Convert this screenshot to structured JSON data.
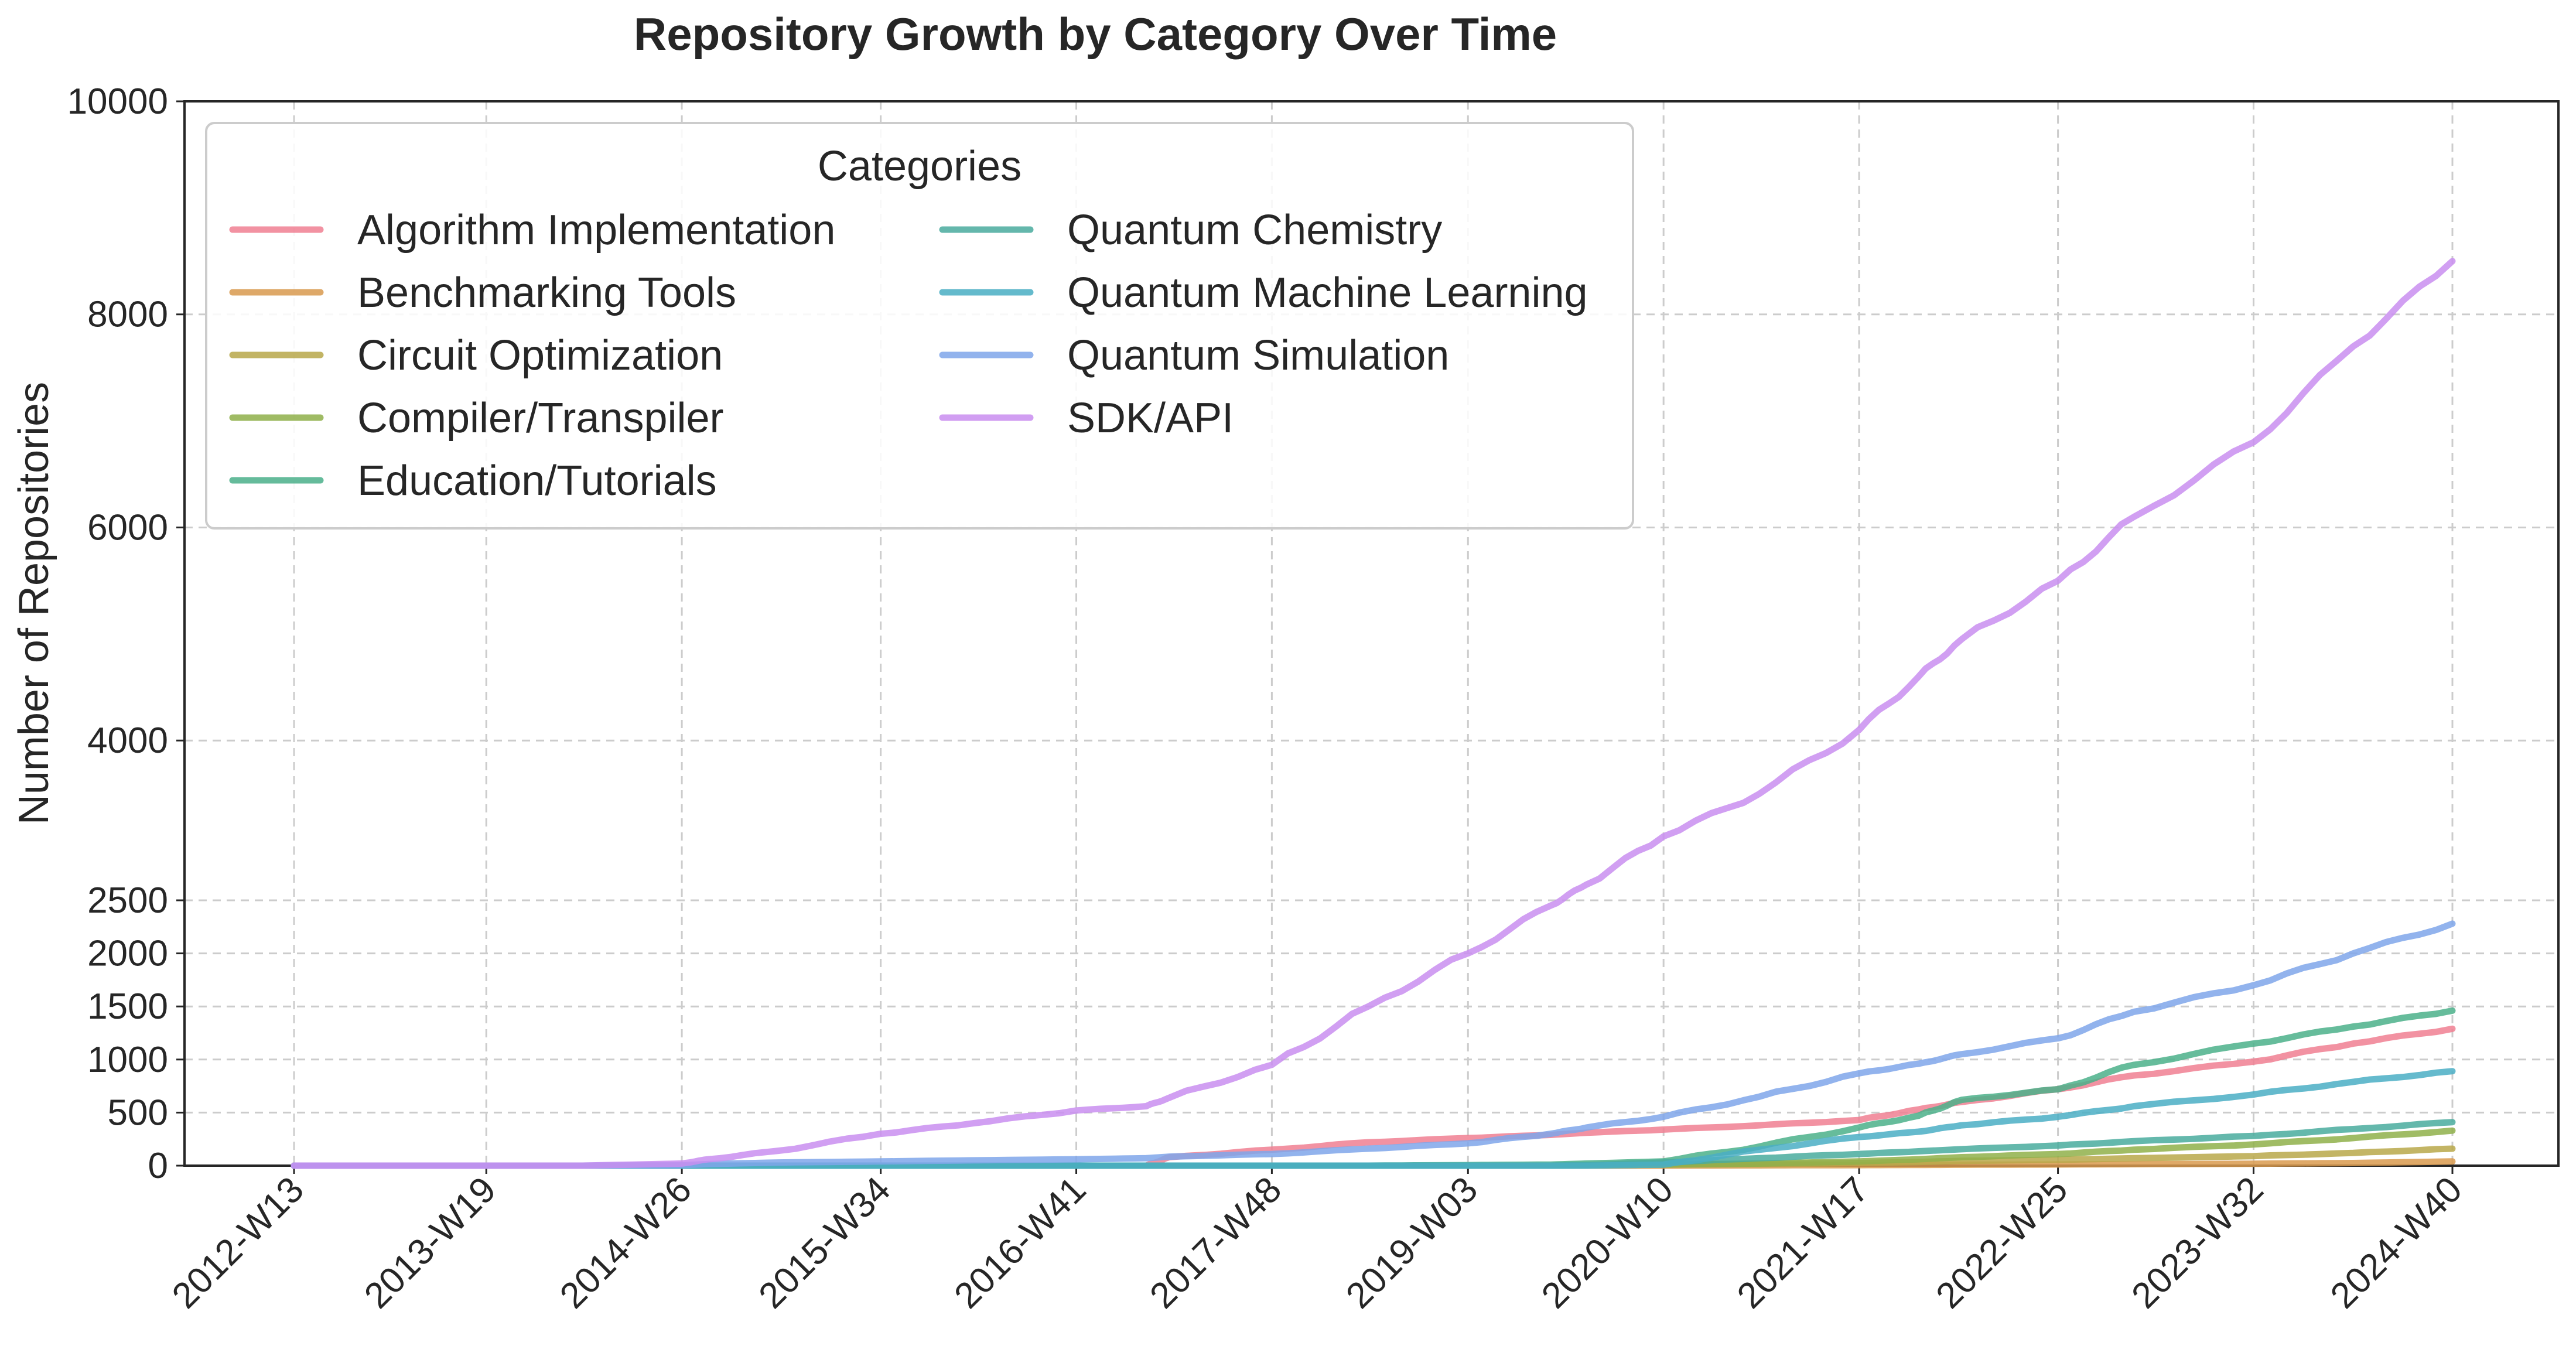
{
  "chart_data": {
    "type": "line",
    "title": "Repository Growth by Category Over Time",
    "xlabel": "",
    "ylabel": "Number of Repositories",
    "ylim": [
      0,
      10000
    ],
    "y_scale": "piecewise-linear (0–2500 stretched, 2500–10000 compressed)",
    "y_ticks": [
      0,
      500,
      1000,
      1500,
      2000,
      2500,
      4000,
      6000,
      8000,
      10000
    ],
    "x_tick_labels": [
      "2012-W13",
      "2013-W19",
      "2014-W26",
      "2015-W34",
      "2016-W41",
      "2017-W48",
      "2019-W03",
      "2020-W10",
      "2021-W17",
      "2022-W25",
      "2023-W32",
      "2024-W40"
    ],
    "x": [
      "2012-W13",
      "2012-W41",
      "2013-W19",
      "2013-W48",
      "2014-W26",
      "2014-W34",
      "2015-W03",
      "2015-W34",
      "2016-W10",
      "2016-W41",
      "2017-W10",
      "2017-W17",
      "2017-W48",
      "2018-W25",
      "2019-W03",
      "2019-W28",
      "2019-W39",
      "2020-W10",
      "2020-W39",
      "2021-W17",
      "2021-W35",
      "2021-W48",
      "2022-W25",
      "2022-W48",
      "2023-W32",
      "2024-W10",
      "2024-W40"
    ],
    "grid": true,
    "legend": {
      "title": "Categories",
      "placement": "upper-left",
      "columns": 2
    },
    "series": [
      {
        "name": "Algorithm Implementation",
        "color": "#f07f92",
        "values": [
          0,
          0,
          0,
          0,
          0,
          0,
          0,
          0,
          0,
          0,
          0,
          80,
          150,
          220,
          260,
          290,
          310,
          340,
          380,
          430,
          530,
          600,
          720,
          850,
          980,
          1150,
          1290
        ]
      },
      {
        "name": "Benchmarking Tools",
        "color": "#d99a4e",
        "values": [
          0,
          0,
          0,
          0,
          0,
          0,
          0,
          0,
          0,
          0,
          0,
          0,
          0,
          0,
          0,
          0,
          0,
          0,
          3,
          5,
          7,
          9,
          11,
          14,
          18,
          25,
          40
        ]
      },
      {
        "name": "Circuit Optimization",
        "color": "#b8a84a",
        "values": [
          0,
          0,
          0,
          0,
          0,
          0,
          0,
          0,
          0,
          0,
          0,
          0,
          0,
          0,
          0,
          0,
          5,
          10,
          15,
          25,
          35,
          45,
          55,
          70,
          90,
          120,
          160
        ]
      },
      {
        "name": "Compiler/Transpiler",
        "color": "#8fb04a",
        "values": [
          0,
          0,
          0,
          0,
          0,
          0,
          0,
          0,
          0,
          0,
          0,
          0,
          0,
          0,
          0,
          0,
          5,
          10,
          20,
          40,
          60,
          80,
          110,
          150,
          200,
          260,
          330
        ]
      },
      {
        "name": "Education/Tutorials",
        "color": "#4bb08a",
        "values": [
          0,
          0,
          0,
          0,
          0,
          0,
          0,
          0,
          0,
          0,
          0,
          0,
          0,
          0,
          5,
          10,
          20,
          40,
          180,
          360,
          470,
          620,
          720,
          950,
          1150,
          1310,
          1460
        ]
      },
      {
        "name": "Quantum Chemistry",
        "color": "#49ab9e",
        "values": [
          0,
          0,
          0,
          0,
          0,
          0,
          0,
          0,
          0,
          0,
          0,
          0,
          0,
          0,
          0,
          0,
          5,
          30,
          70,
          110,
          135,
          155,
          190,
          230,
          280,
          345,
          410
        ]
      },
      {
        "name": "Quantum Machine Learning",
        "color": "#4aaec4",
        "values": [
          0,
          0,
          0,
          0,
          0,
          0,
          0,
          0,
          0,
          0,
          0,
          0,
          0,
          0,
          0,
          0,
          0,
          10,
          150,
          270,
          320,
          380,
          460,
          560,
          670,
          790,
          890
        ]
      },
      {
        "name": "Quantum Simulation",
        "color": "#7fa6ea",
        "values": [
          0,
          0,
          0,
          0,
          5,
          15,
          30,
          40,
          50,
          60,
          70,
          85,
          110,
          160,
          210,
          300,
          360,
          460,
          650,
          870,
          960,
          1050,
          1200,
          1450,
          1700,
          2000,
          2280
        ]
      },
      {
        "name": "SDK/API",
        "color": "#c98ef0",
        "values": [
          0,
          0,
          0,
          0,
          20,
          60,
          140,
          300,
          400,
          520,
          560,
          640,
          950,
          1500,
          2000,
          2450,
          2650,
          3100,
          3500,
          4100,
          4600,
          4950,
          5500,
          6100,
          6800,
          7700,
          8500
        ]
      }
    ]
  }
}
